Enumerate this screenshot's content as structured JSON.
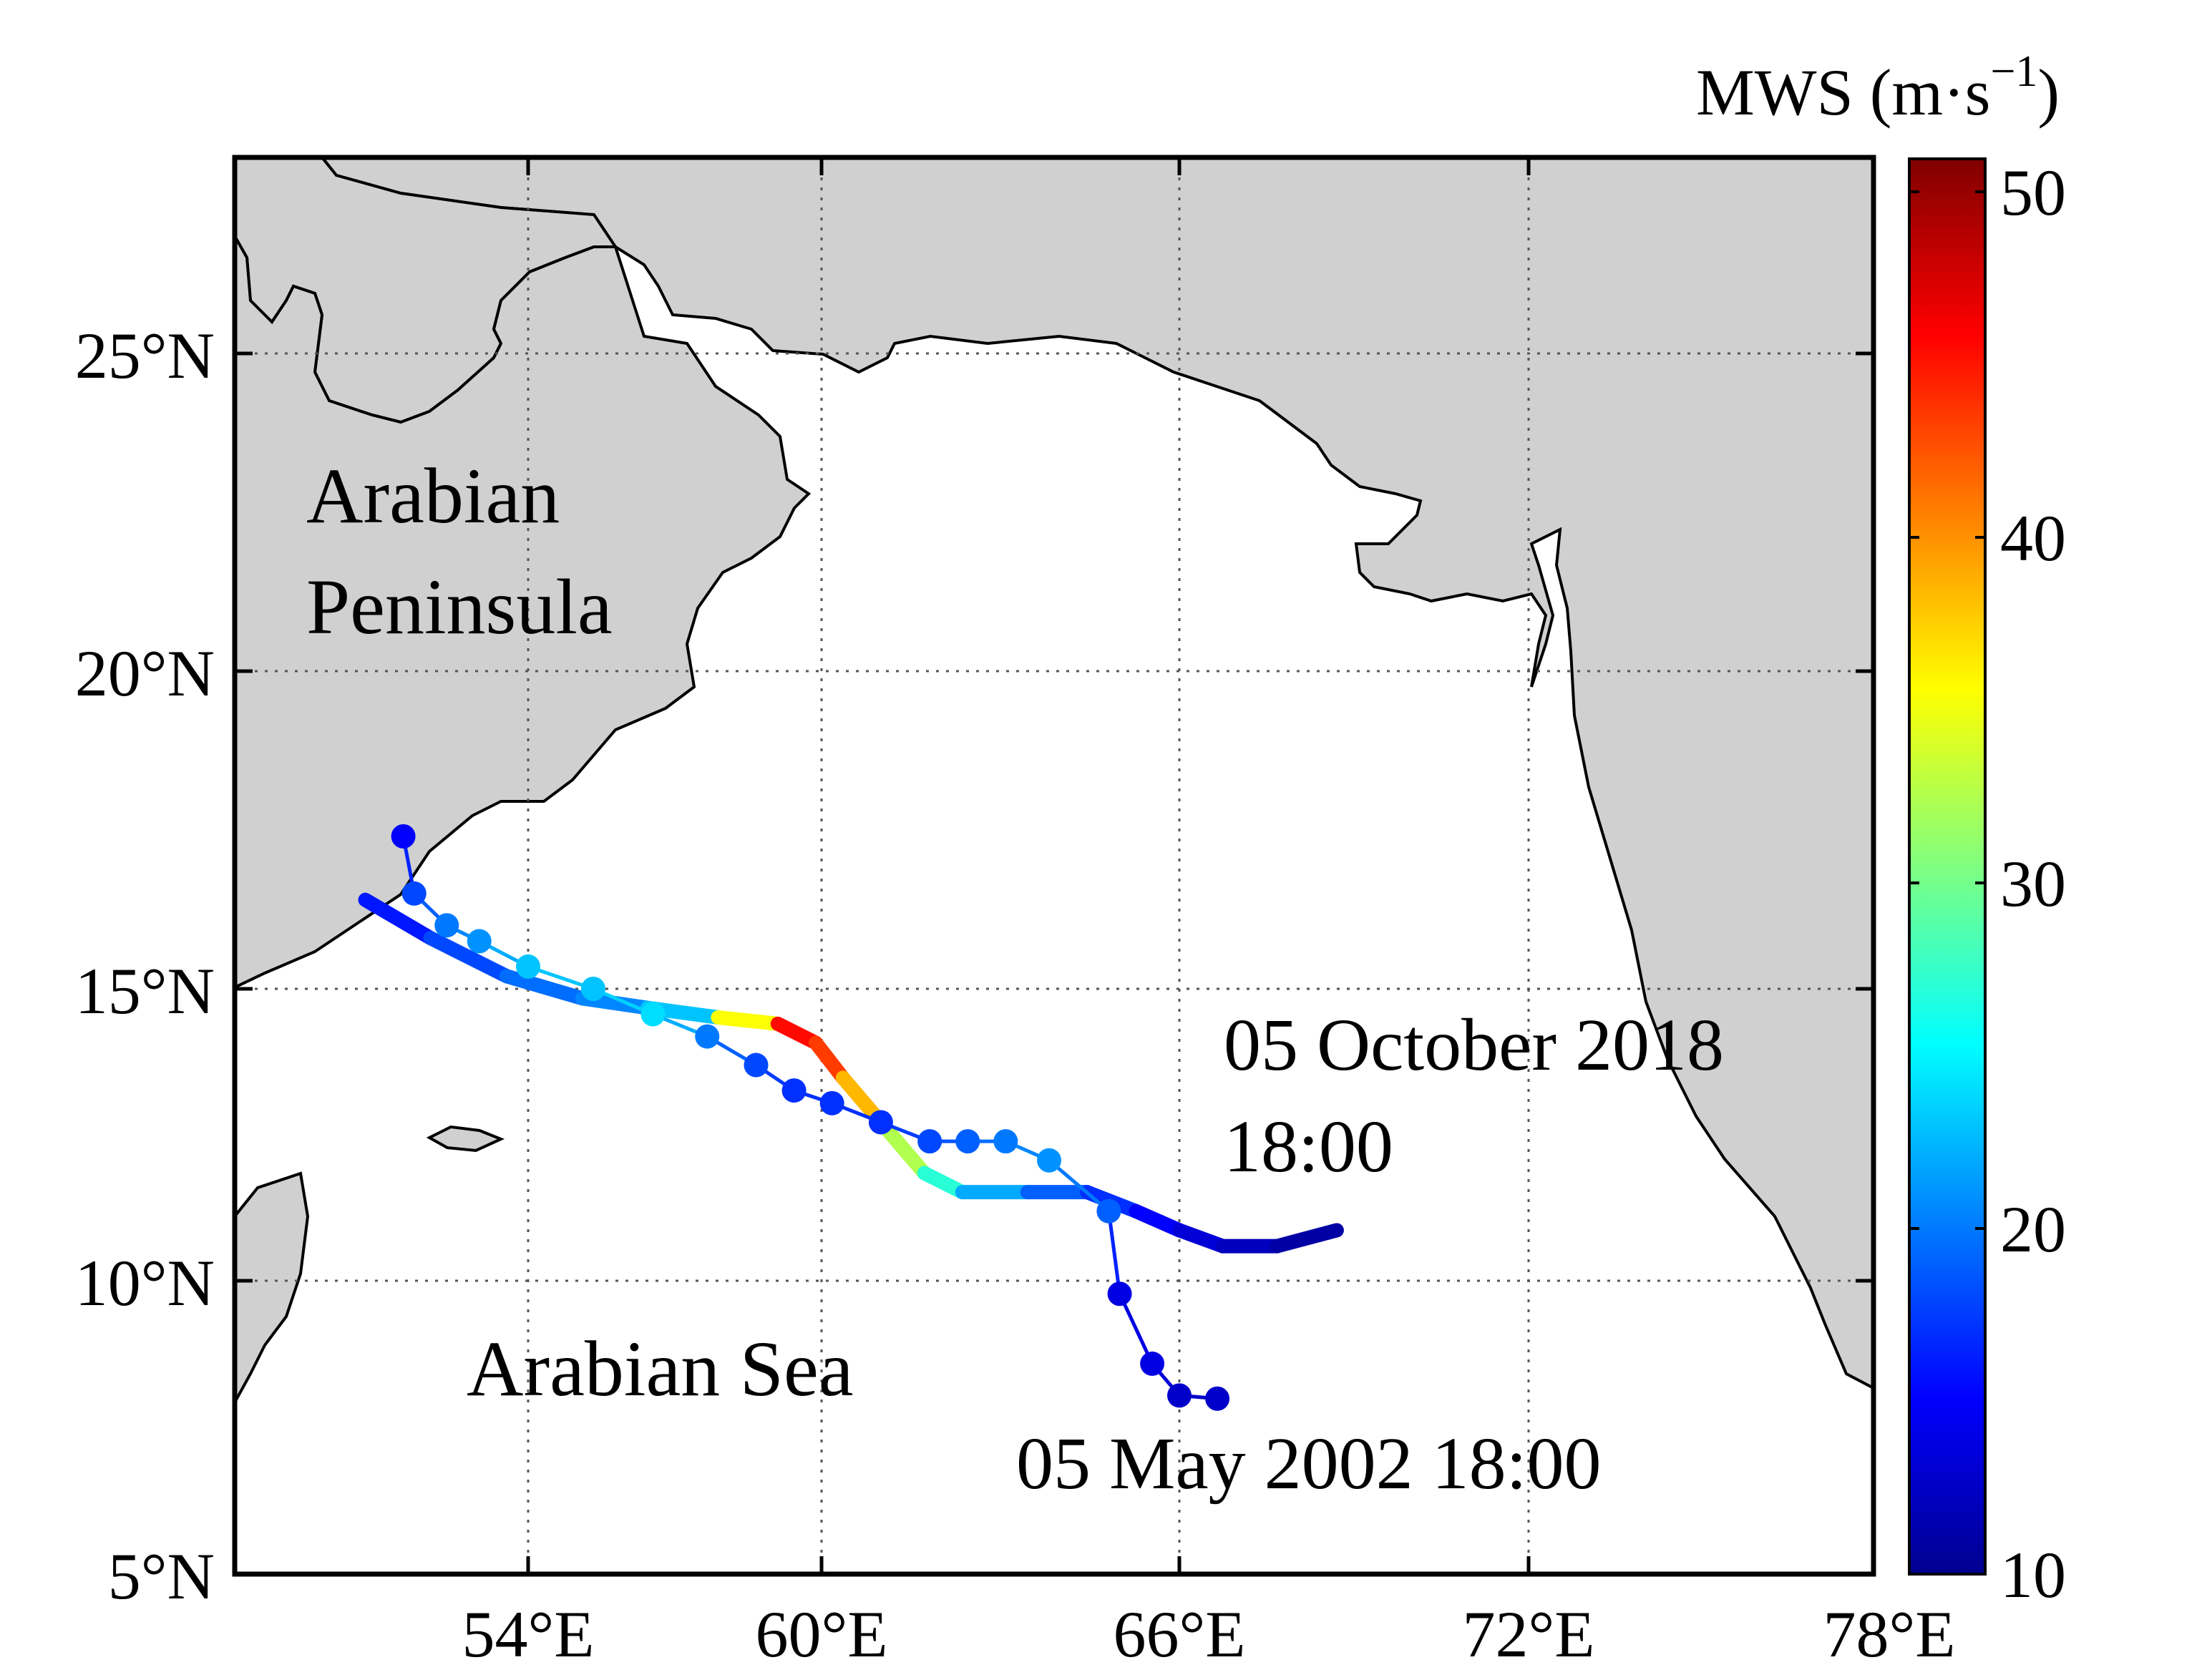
{
  "map": {
    "region_labels": {
      "land": [
        "Arabian",
        "Peninsula"
      ],
      "sea": "Arabian Sea"
    },
    "lat_ticks": [
      "25°N",
      "20°N",
      "15°N",
      "10°N",
      "5°N"
    ],
    "lon_ticks": [
      "54°E",
      "60°E",
      "66°E",
      "72°E",
      "78°E"
    ],
    "extent": {
      "lon": [
        50.0,
        78.0
      ],
      "lat": [
        5.0,
        28.0
      ]
    },
    "annotations": {
      "track_2018_date": "05 October 2018",
      "track_2018_time": "18:00",
      "track_2002": "05 May 2002 18:00"
    },
    "colors": {
      "land": "#d0d0d0",
      "sea": "#ffffff"
    }
  },
  "colorbar": {
    "title": "MWS (m·s",
    "title_sup": "−1",
    "title_close": ")",
    "min": 10,
    "max": 51,
    "ticks": [
      "50",
      "40",
      "30",
      "20",
      "10"
    ],
    "tick_values": [
      50,
      40,
      30,
      20,
      10
    ]
  },
  "chart_data": {
    "type": "scatter",
    "title": "",
    "xlabel": "",
    "ylabel": "",
    "xlim": [
      50.0,
      78.0
    ],
    "ylim": [
      5.0,
      28.0
    ],
    "series": [
      {
        "name": "05 October 2018 18:00",
        "style": "thick-line",
        "points": [
          {
            "lon": 51.0,
            "lat": 16.4,
            "mws": 15
          },
          {
            "lon": 52.2,
            "lat": 15.8,
            "mws": 17
          },
          {
            "lon": 53.6,
            "lat": 15.2,
            "mws": 19
          },
          {
            "lon": 55.0,
            "lat": 14.85,
            "mws": 20
          },
          {
            "lon": 56.2,
            "lat": 14.7,
            "mws": 21
          },
          {
            "lon": 57.5,
            "lat": 14.55,
            "mws": 25
          },
          {
            "lon": 58.6,
            "lat": 14.45,
            "mws": 46
          },
          {
            "lon": 59.3,
            "lat": 14.15,
            "mws": 45
          },
          {
            "lon": 59.8,
            "lat": 13.6,
            "mws": 42
          },
          {
            "lon": 60.5,
            "lat": 12.9,
            "mws": 35
          },
          {
            "lon": 61.3,
            "lat": 12.1,
            "mws": 30
          },
          {
            "lon": 62.0,
            "lat": 11.8,
            "mws": 24
          },
          {
            "lon": 63.2,
            "lat": 11.8,
            "mws": 20
          },
          {
            "lon": 64.3,
            "lat": 11.8,
            "mws": 18
          },
          {
            "lon": 65.2,
            "lat": 11.5,
            "mws": 16
          },
          {
            "lon": 66.0,
            "lat": 11.2,
            "mws": 14
          },
          {
            "lon": 66.8,
            "lat": 10.95,
            "mws": 13
          },
          {
            "lon": 67.8,
            "lat": 10.95,
            "mws": 12
          },
          {
            "lon": 68.9,
            "lat": 11.2,
            "mws": 11
          }
        ]
      },
      {
        "name": "05 May 2002 18:00",
        "style": "dots",
        "points": [
          {
            "lon": 66.7,
            "lat": 8.55,
            "mws": 13
          },
          {
            "lon": 66.0,
            "lat": 8.6,
            "mws": 13
          },
          {
            "lon": 65.5,
            "lat": 9.1,
            "mws": 14
          },
          {
            "lon": 64.9,
            "lat": 10.2,
            "mws": 14
          },
          {
            "lon": 64.7,
            "lat": 11.5,
            "mws": 19
          },
          {
            "lon": 63.6,
            "lat": 12.3,
            "mws": 21
          },
          {
            "lon": 62.8,
            "lat": 12.6,
            "mws": 20
          },
          {
            "lon": 62.1,
            "lat": 12.6,
            "mws": 19
          },
          {
            "lon": 61.4,
            "lat": 12.6,
            "mws": 18
          },
          {
            "lon": 60.5,
            "lat": 12.9,
            "mws": 17
          },
          {
            "lon": 59.6,
            "lat": 13.2,
            "mws": 17
          },
          {
            "lon": 58.9,
            "lat": 13.4,
            "mws": 17
          },
          {
            "lon": 58.2,
            "lat": 13.8,
            "mws": 18
          },
          {
            "lon": 57.3,
            "lat": 14.25,
            "mws": 20
          },
          {
            "lon": 56.3,
            "lat": 14.6,
            "mws": 24
          },
          {
            "lon": 55.2,
            "lat": 15.0,
            "mws": 23
          },
          {
            "lon": 54.0,
            "lat": 15.35,
            "mws": 23
          },
          {
            "lon": 53.1,
            "lat": 15.75,
            "mws": 21
          },
          {
            "lon": 52.5,
            "lat": 16.0,
            "mws": 20
          },
          {
            "lon": 51.9,
            "lat": 16.5,
            "mws": 18
          },
          {
            "lon": 51.7,
            "lat": 17.4,
            "mws": 15
          }
        ]
      }
    ]
  }
}
